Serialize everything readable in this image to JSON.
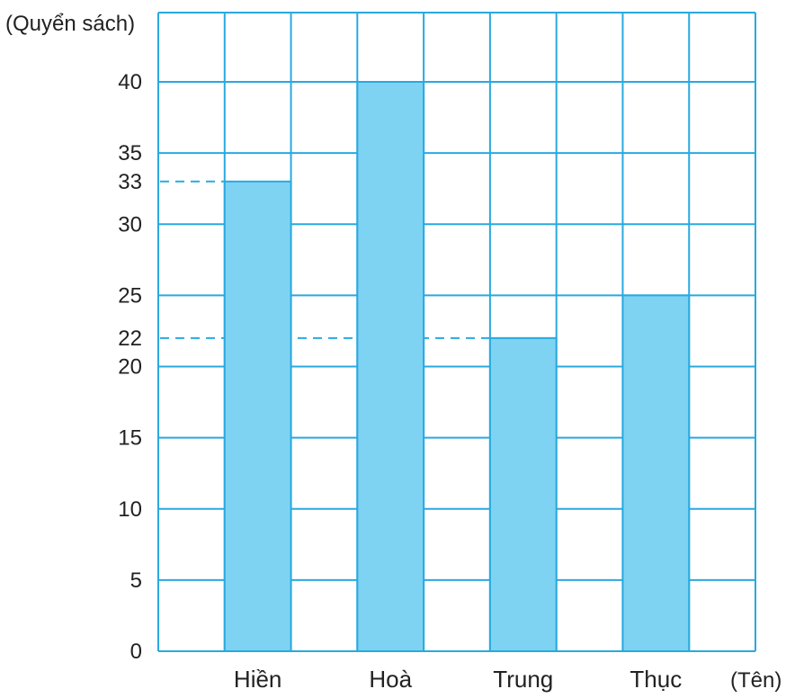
{
  "chart_data": {
    "type": "bar",
    "ylabel": "(Quyển sách)",
    "xlabel": "(Tên)",
    "categories": [
      "Hiền",
      "Hoà",
      "Trung",
      "Thục"
    ],
    "values": [
      33,
      40,
      22,
      25
    ],
    "ylim": [
      0,
      40
    ],
    "yticks": [
      0,
      5,
      10,
      15,
      20,
      22,
      25,
      30,
      33,
      35,
      40
    ],
    "reference_lines": [
      33,
      22
    ],
    "grid": true,
    "colors": {
      "bar": "#7fd3f2",
      "grid": "#29a9e0",
      "ref": "#29a9e0"
    }
  }
}
